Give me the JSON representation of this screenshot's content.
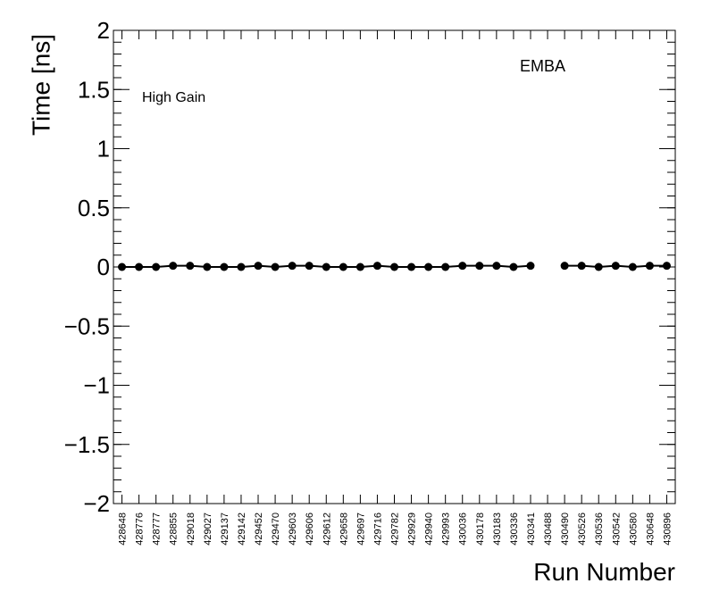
{
  "chart_data": {
    "type": "line",
    "y_label": "Time [ns]",
    "x_label": "Run Number",
    "annotations": [
      "EMBA",
      "High Gain"
    ],
    "categories": [
      "428648",
      "428776",
      "428777",
      "428855",
      "429018",
      "429027",
      "429137",
      "429142",
      "429452",
      "429470",
      "429603",
      "429606",
      "429612",
      "429658",
      "429697",
      "429716",
      "429782",
      "429929",
      "429940",
      "429993",
      "430036",
      "430178",
      "430183",
      "430336",
      "430341",
      "430488",
      "430490",
      "430526",
      "430536",
      "430542",
      "430580",
      "430648",
      "430896"
    ],
    "series": [
      {
        "name": "High Gain",
        "color": "#000000",
        "values": [
          0,
          0,
          0,
          0.01,
          0.01,
          0,
          0,
          0,
          0.01,
          0,
          0.01,
          0.01,
          0,
          0,
          0,
          0.01,
          0,
          0,
          0,
          0,
          0.01,
          0.01,
          0.01,
          0,
          0.01,
          null,
          0.01,
          0.01,
          0,
          0.01,
          0,
          0.01,
          0.01
        ]
      }
    ],
    "ylim": [
      -2,
      2
    ],
    "yticks": [
      {
        "value": -2,
        "label": "−2"
      },
      {
        "value": -1.5,
        "label": "−1.5"
      },
      {
        "value": -1,
        "label": "−1"
      },
      {
        "value": -0.5,
        "label": "−0.5"
      },
      0,
      0.5,
      1,
      1.5,
      2
    ],
    "grid": false
  }
}
